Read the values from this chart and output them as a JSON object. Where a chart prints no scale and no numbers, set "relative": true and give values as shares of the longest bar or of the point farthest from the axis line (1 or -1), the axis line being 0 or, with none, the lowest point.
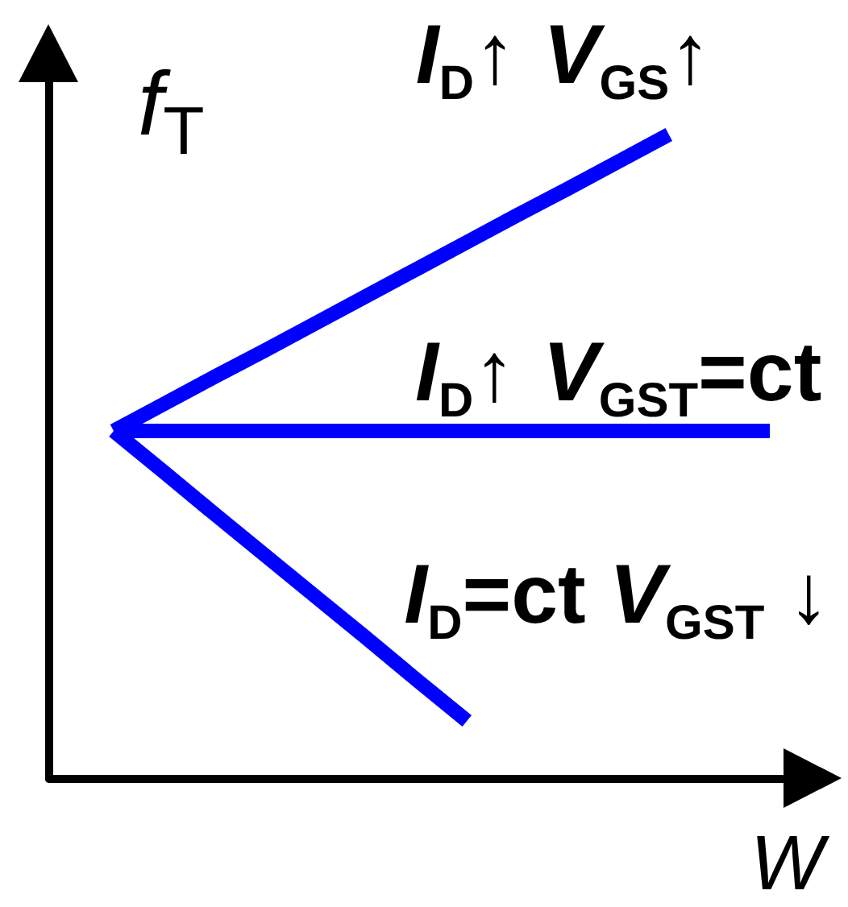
{
  "chart_data": {
    "type": "line",
    "relative": true,
    "xlabel": "W",
    "ylabel": "f$_{T}$",
    "line_style": "solid",
    "categories": [
      null,
      null,
      null,
      null,
      null,
      null,
      null,
      null,
      null,
      null,
      null,
      null,
      null,
      null
    ],
    "series": [
      {
        "name": "I$_{D}$↑ V$_{GS}$↑",
        "color": "#0000ff",
        "values": [
          0.54,
          0.582,
          0.624,
          0.665,
          0.707,
          0.749,
          0.791,
          0.833,
          0.875,
          0.916,
          0.958,
          1,
          null,
          null
        ]
      },
      {
        "name": "I$_{D}$↑ V$_{GST}$=ct",
        "color": "#0000ff",
        "values": [
          0.54,
          0.54,
          0.54,
          0.54,
          0.54,
          0.54,
          0.54,
          0.54,
          0.54,
          0.54,
          0.54,
          0.54,
          0.54,
          0.54
        ]
      },
      {
        "name": "I$_{D}$=ct V$_{GST}$ ↓",
        "color": "#0000ff",
        "values": [
          0.54,
          0.476,
          0.411,
          0.347,
          0.283,
          0.219,
          0.154,
          0.09,
          null,
          null,
          null,
          null,
          null,
          null
        ]
      }
    ]
  }
}
